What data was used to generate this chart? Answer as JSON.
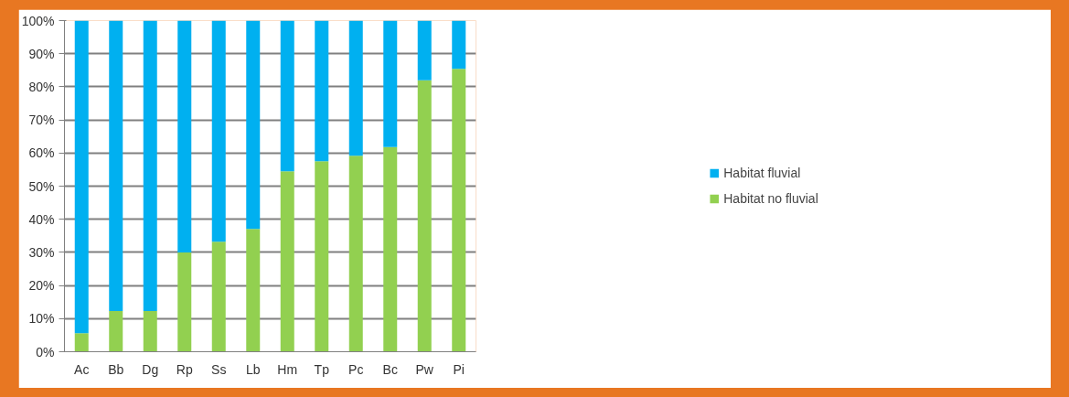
{
  "chart_data": {
    "type": "bar",
    "stacked": true,
    "categories": [
      "Ac",
      "Bb",
      "Dg",
      "Rp",
      "Ss",
      "Lb",
      "Hm",
      "Tp",
      "Pc",
      "Bc",
      "Pw",
      "Pi"
    ],
    "series": [
      {
        "name": "Habitat no fluvial",
        "color": "#92d050",
        "values": [
          5.6,
          12.3,
          12.3,
          30.0,
          33.2,
          37.1,
          54.5,
          57.5,
          59.2,
          61.8,
          82.0,
          85.4
        ]
      },
      {
        "name": "Habitat fluvial",
        "color": "#00b0f0",
        "values": [
          94.4,
          87.7,
          87.7,
          70.0,
          66.8,
          62.9,
          45.5,
          42.5,
          40.8,
          38.2,
          18.0,
          14.6
        ]
      }
    ],
    "ylim": [
      0,
      100
    ],
    "yticks": [
      {
        "value": 0,
        "label": "0%"
      },
      {
        "value": 10,
        "label": "10%"
      },
      {
        "value": 20,
        "label": "20%"
      },
      {
        "value": 30,
        "label": "30%"
      },
      {
        "value": 40,
        "label": "40%"
      },
      {
        "value": 50,
        "label": "50%"
      },
      {
        "value": 60,
        "label": "60%"
      },
      {
        "value": 70,
        "label": "70%"
      },
      {
        "value": 80,
        "label": "80%"
      },
      {
        "value": 90,
        "label": "90%"
      },
      {
        "value": 100,
        "label": "100%"
      }
    ],
    "grid": "y",
    "legend": "right"
  }
}
